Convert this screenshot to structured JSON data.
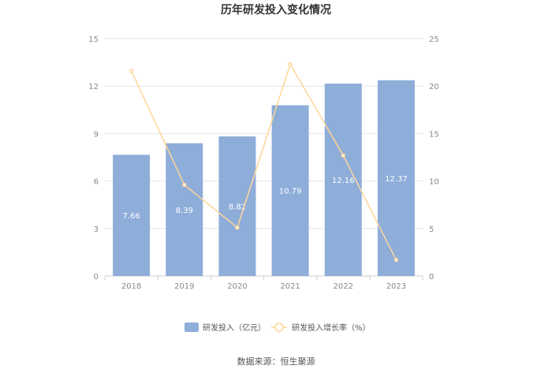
{
  "chart_data": {
    "type": "bar",
    "title": "历年研发投入变化情况",
    "categories": [
      "2018",
      "2019",
      "2020",
      "2021",
      "2022",
      "2023"
    ],
    "series": [
      {
        "name": "研发投入（亿元）",
        "type": "bar",
        "axis": "left",
        "values": [
          7.66,
          8.39,
          8.82,
          10.79,
          12.16,
          12.37
        ],
        "labels": [
          "7.66",
          "8.39",
          "8.82",
          "10.79",
          "12.16",
          "12.37"
        ],
        "color": "#8eadd9"
      },
      {
        "name": "研发投入增长率（%）",
        "type": "line",
        "axis": "right",
        "values": [
          21.6,
          9.6,
          5.1,
          22.3,
          12.7,
          1.7
        ],
        "color": "#ffd699"
      }
    ],
    "y_left": {
      "range": [
        0,
        15
      ],
      "ticks": [
        "0",
        "3",
        "6",
        "9",
        "12",
        "15"
      ]
    },
    "y_right": {
      "range": [
        0,
        25
      ],
      "ticks": [
        "0",
        "5",
        "10",
        "15",
        "20",
        "25"
      ]
    },
    "grid": true,
    "legend_position": "bottom"
  },
  "source_text": "数据来源：恒生聚源"
}
